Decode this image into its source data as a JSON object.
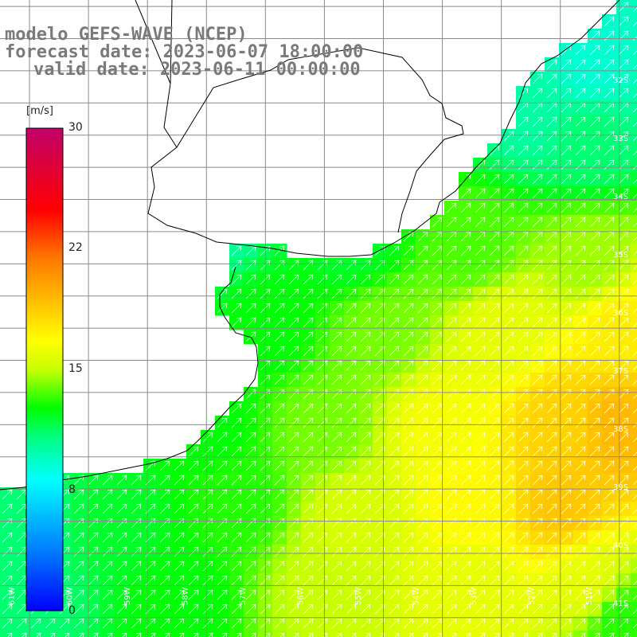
{
  "titles": {
    "model": "modelo GEFS-WAVE (NCEP)",
    "forecast": "forecast date: 2023-06-07 18:00:00",
    "valid": "valid date: 2023-06-11 00:00:00"
  },
  "colorbar": {
    "unit": "[m/s]",
    "ticks": [
      "30",
      "22",
      "15",
      "8",
      "0"
    ],
    "range": [
      0,
      30
    ]
  },
  "lon_labels": [
    "61W",
    "60W",
    "59W",
    "58W",
    "57W",
    "56W",
    "55W",
    "54W",
    "53W",
    "52W",
    "51W"
  ],
  "lat_labels": [
    "32S",
    "33S",
    "34S",
    "35S",
    "36S",
    "37S",
    "38S",
    "39S",
    "40S",
    "41S"
  ],
  "chart_data": {
    "type": "heatmap",
    "variable": "wind speed",
    "unit": "m/s",
    "vmin": 0,
    "vmax": 30,
    "lon_range": [
      -61,
      -50.2
    ],
    "lat_range": [
      -41.3,
      -31.4
    ],
    "colormap": [
      "#0000ff",
      "#00a0ff",
      "#00ffff",
      "#00ff80",
      "#00ff00",
      "#b4ff00",
      "#ffff00",
      "#ff8000",
      "#ff0000",
      "#c0006a"
    ],
    "speed_field_description": "approximate anchor points lon, lat, speed",
    "anchors": [
      [
        -51.0,
        -32.5,
        9
      ],
      [
        -52.0,
        -33.0,
        10
      ],
      [
        -51.0,
        -33.5,
        11
      ],
      [
        -57.5,
        -34.8,
        10
      ],
      [
        -55.0,
        -35.2,
        12
      ],
      [
        -53.0,
        -35.3,
        13.5
      ],
      [
        -51.0,
        -35.5,
        14.5
      ],
      [
        -56.5,
        -36.5,
        12.5
      ],
      [
        -54.5,
        -36.5,
        14
      ],
      [
        -52.5,
        -36.5,
        16
      ],
      [
        -50.5,
        -36.5,
        17.5
      ],
      [
        -57.5,
        -38.0,
        12.5
      ],
      [
        -55.5,
        -38.0,
        14
      ],
      [
        -53.5,
        -38.0,
        16.5
      ],
      [
        -51.5,
        -38.0,
        18.5
      ],
      [
        -50.5,
        -38.0,
        19.5
      ],
      [
        -60.5,
        -39.5,
        11
      ],
      [
        -59.0,
        -39.5,
        12
      ],
      [
        -57.0,
        -39.2,
        13
      ],
      [
        -55.0,
        -39.5,
        15.5
      ],
      [
        -53.0,
        -39.2,
        17
      ],
      [
        -51.5,
        -39.2,
        19
      ],
      [
        -60.5,
        -40.7,
        11
      ],
      [
        -58.0,
        -40.7,
        12.5
      ],
      [
        -55.5,
        -40.5,
        15
      ],
      [
        -53.0,
        -40.5,
        16
      ],
      [
        -51.0,
        -40.5,
        16
      ],
      [
        -50.5,
        -41.0,
        13
      ]
    ],
    "wind_direction": "toward north-east (arrows)"
  }
}
